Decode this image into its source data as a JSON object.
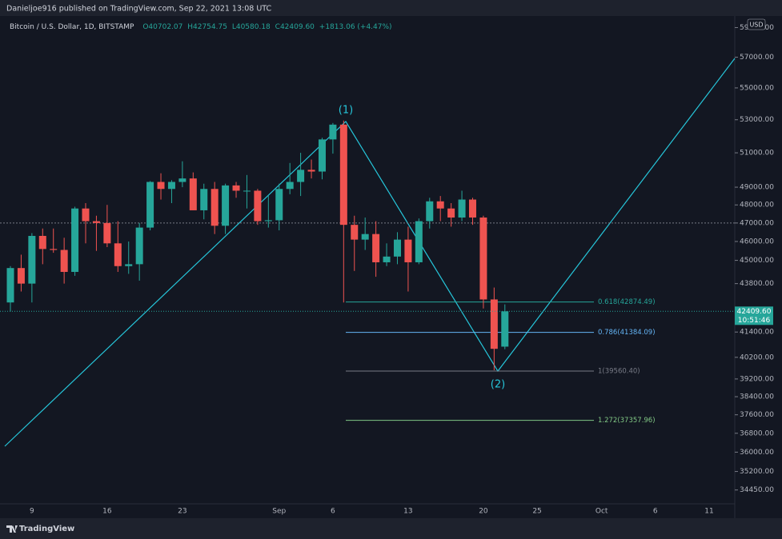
{
  "header": "Danieljoe916 published on TradingView.com, Sep 22, 2021 13:08 UTC",
  "footer": "TradingView",
  "chart_data": {
    "type": "candlestick",
    "title": "Bitcoin / U.S. Dollar, 1D, BITSTAMP",
    "ohlc_legend": [
      "O40702.07",
      "H42754.75",
      "L40580.18",
      "C42409.60",
      "+1813.06 (+4.47%)"
    ],
    "currency": "USD",
    "categories": [
      null,
      null,
      "9",
      null,
      null,
      null,
      null,
      null,
      null,
      "16",
      null,
      null,
      null,
      null,
      null,
      null,
      "23",
      null,
      null,
      null,
      null,
      null,
      null,
      null,
      null,
      "Sep",
      null,
      null,
      null,
      null,
      "6",
      null,
      null,
      null,
      null,
      null,
      null,
      "13",
      null,
      null,
      null,
      null,
      null,
      null,
      "20",
      null,
      null,
      null,
      null,
      "25",
      null,
      null,
      null,
      null,
      null,
      "Oct",
      null,
      null,
      null,
      null,
      "6",
      null,
      null,
      null,
      null,
      "11",
      null,
      null
    ],
    "open": [
      42850,
      44600,
      43800,
      46300,
      45600,
      45550,
      44400,
      47800,
      47100,
      47000,
      45900,
      44700,
      44800,
      46750,
      49300,
      48900,
      49300,
      49500,
      47700,
      48900,
      46850,
      49100,
      48800,
      48800,
      47100,
      47150,
      48900,
      49300,
      50000,
      49900,
      51800,
      52700,
      46900,
      46100,
      46400,
      44900,
      45200,
      46100,
      44900,
      47100,
      48200,
      47800,
      47300,
      48300,
      47300,
      43000,
      40702.07,
      null,
      null,
      null,
      null,
      null,
      null,
      null,
      null,
      null,
      null,
      null,
      null,
      null,
      null,
      null,
      null,
      null,
      null,
      null,
      null,
      null
    ],
    "high": [
      44700,
      45300,
      46450,
      46700,
      46700,
      46200,
      47900,
      48100,
      47400,
      48000,
      47100,
      46000,
      47000,
      49350,
      49800,
      49400,
      50500,
      49850,
      49200,
      49300,
      49200,
      49300,
      49700,
      48900,
      48500,
      49200,
      50400,
      51000,
      50600,
      51900,
      52800,
      52950,
      47400,
      47300,
      47100,
      45900,
      46500,
      46800,
      47250,
      48400,
      48500,
      48100,
      48800,
      48400,
      47400,
      43600,
      42754.75,
      null,
      null,
      null,
      null,
      null,
      null,
      null,
      null,
      null,
      null,
      null,
      null,
      null,
      null,
      null,
      null,
      null,
      null,
      null,
      null,
      null
    ],
    "low": [
      42400,
      43400,
      42850,
      44800,
      45400,
      43800,
      44200,
      45900,
      45500,
      45700,
      44400,
      44300,
      43950,
      46600,
      48300,
      48100,
      49000,
      47700,
      47200,
      46400,
      46400,
      48400,
      47800,
      46900,
      46750,
      46600,
      48600,
      48500,
      49500,
      49450,
      50950,
      42850,
      44450,
      45550,
      44150,
      44700,
      44800,
      43400,
      44800,
      46700,
      47100,
      46800,
      47100,
      46900,
      42550,
      39600,
      40580.18,
      null,
      null,
      null,
      null,
      null,
      null,
      null,
      null,
      null,
      null,
      null,
      null,
      null,
      null,
      null,
      null,
      null,
      null,
      null,
      null,
      null
    ],
    "close": [
      44600,
      43800,
      46300,
      45600,
      45550,
      44400,
      47800,
      47100,
      47000,
      45900,
      44700,
      44800,
      46750,
      49300,
      48900,
      49300,
      49500,
      47700,
      48900,
      46850,
      49100,
      48800,
      48800,
      47100,
      47150,
      48900,
      49300,
      50000,
      49900,
      51800,
      52700,
      46900,
      46100,
      46400,
      44900,
      45200,
      46100,
      44900,
      47100,
      48200,
      47800,
      47300,
      48300,
      47300,
      43000,
      40600,
      42409.6,
      null,
      null,
      null,
      null,
      null,
      null,
      null,
      null,
      null,
      null,
      null,
      null,
      null,
      null,
      null,
      null,
      null,
      null,
      null,
      null,
      null
    ],
    "up_color": "#26a69a",
    "down_color": "#ef5350",
    "log_scale": true,
    "grid": false,
    "ylim": [
      33900,
      59800
    ],
    "yticks": [
      {
        "value": 59000,
        "label": "59000.00"
      },
      {
        "value": 57000,
        "label": "57000.00"
      },
      {
        "value": 55000,
        "label": "55000.00"
      },
      {
        "value": 53000,
        "label": "53000.00"
      },
      {
        "value": 51000,
        "label": "51000.00"
      },
      {
        "value": 49000,
        "label": "49000.00"
      },
      {
        "value": 48000,
        "label": "48000.00"
      },
      {
        "value": 47000,
        "label": "47000.00"
      },
      {
        "value": 46000,
        "label": "46000.00"
      },
      {
        "value": 45000,
        "label": "45000.00"
      },
      {
        "value": 43800,
        "label": "43800.00"
      },
      {
        "value": 41400,
        "label": "41400.00"
      },
      {
        "value": 40200,
        "label": "40200.00"
      },
      {
        "value": 39200,
        "label": "39200.00"
      },
      {
        "value": 38400,
        "label": "38400.00"
      },
      {
        "value": 37600,
        "label": "37600.00"
      },
      {
        "value": 36800,
        "label": "36800.00"
      },
      {
        "value": 36000,
        "label": "36000.00"
      },
      {
        "value": 35200,
        "label": "35200.00"
      },
      {
        "value": 34450,
        "label": "34450.00"
      }
    ],
    "horizontal_line": 47000,
    "last_price": {
      "value": 42409.6,
      "label": "42409.60",
      "countdown": "10:51:46",
      "color": "#26a69a"
    },
    "fib_levels": [
      {
        "value": 42874.49,
        "label": "0.618(42874.49)",
        "color": "#26a69a"
      },
      {
        "value": 41384.09,
        "label": "0.786(41384.09)",
        "color": "#64b5f6"
      },
      {
        "value": 39560.4,
        "label": "1(39560.40)",
        "color": "#787b86"
      },
      {
        "value": 37357.96,
        "label": "1.272(37357.96)",
        "color": "#81c784"
      }
    ],
    "wave_labels": [
      "(1)",
      "(2)"
    ]
  }
}
